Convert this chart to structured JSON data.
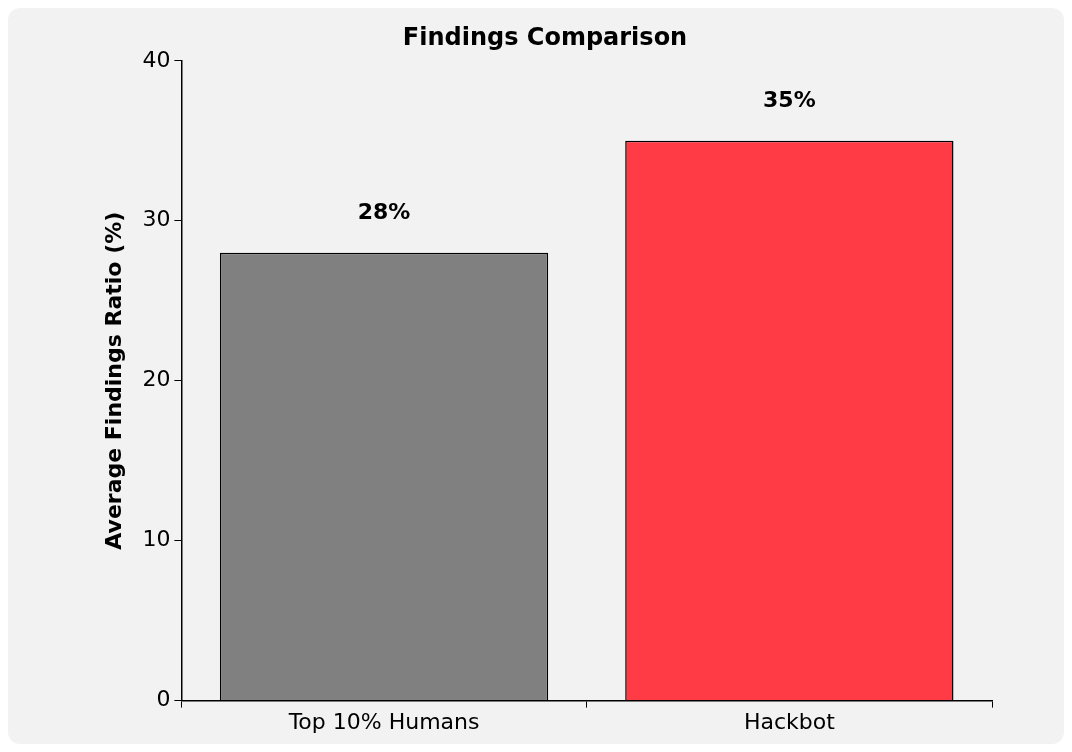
{
  "chart_data": {
    "type": "bar",
    "title": "Findings Comparison",
    "ylabel": "Average Findings Ratio (%)",
    "categories": [
      "Top 10% Humans",
      "Hackbot"
    ],
    "values": [
      28,
      35
    ],
    "colors": [
      "#808080",
      "#ff3b45"
    ],
    "value_labels": [
      "28%",
      "35%"
    ],
    "ylim": [
      0,
      40
    ],
    "yticks": [
      0,
      10,
      20,
      30,
      40
    ],
    "grid": false,
    "legend": false
  }
}
